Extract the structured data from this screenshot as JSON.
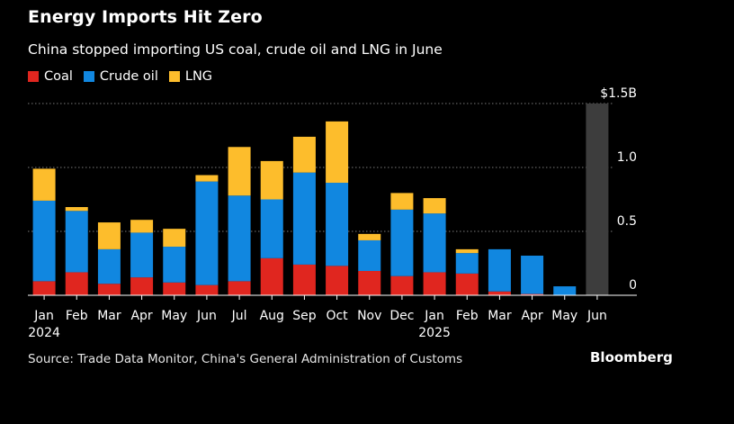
{
  "header": {
    "title": "Energy Imports Hit Zero",
    "subtitle": "China stopped importing US coal, crude oil and LNG in June"
  },
  "footer": {
    "source": "Source: Trade Data Monitor, China's General Administration of Customs",
    "brand": "Bloomberg"
  },
  "chart_data": {
    "type": "bar",
    "stacked": true,
    "categories": [
      "Jan",
      "Feb",
      "Mar",
      "Apr",
      "May",
      "Jun",
      "Jul",
      "Aug",
      "Sep",
      "Oct",
      "Nov",
      "Dec",
      "Jan",
      "Feb",
      "Mar",
      "Apr",
      "May",
      "Jun"
    ],
    "year_labels": [
      {
        "index": 0,
        "label": "2024"
      },
      {
        "index": 12,
        "label": "2025"
      }
    ],
    "series": [
      {
        "name": "Coal",
        "color": "#e0261f",
        "values": [
          0.11,
          0.18,
          0.09,
          0.14,
          0.1,
          0.08,
          0.11,
          0.29,
          0.24,
          0.23,
          0.19,
          0.15,
          0.18,
          0.17,
          0.03,
          0.01,
          0.0,
          0.0
        ]
      },
      {
        "name": "Crude oil",
        "color": "#1187e0",
        "values": [
          0.63,
          0.48,
          0.27,
          0.35,
          0.28,
          0.81,
          0.67,
          0.46,
          0.72,
          0.65,
          0.24,
          0.52,
          0.46,
          0.16,
          0.33,
          0.3,
          0.07,
          0.0
        ]
      },
      {
        "name": "LNG",
        "color": "#fdbd2c",
        "values": [
          0.25,
          0.03,
          0.21,
          0.1,
          0.14,
          0.05,
          0.38,
          0.3,
          0.28,
          0.48,
          0.05,
          0.13,
          0.12,
          0.03,
          0.0,
          0.0,
          0.0,
          0.0
        ]
      }
    ],
    "y_ticks": [
      {
        "value": 1.5,
        "label": "$1.5B"
      },
      {
        "value": 1.0,
        "label": "1.0"
      },
      {
        "value": 0.5,
        "label": "0.5"
      },
      {
        "value": 0,
        "label": "0"
      }
    ],
    "ylim": [
      0,
      1.5
    ],
    "highlight": {
      "index": 17,
      "color": "#3d3d3d"
    },
    "grid": true,
    "legend_position": "top-left"
  }
}
